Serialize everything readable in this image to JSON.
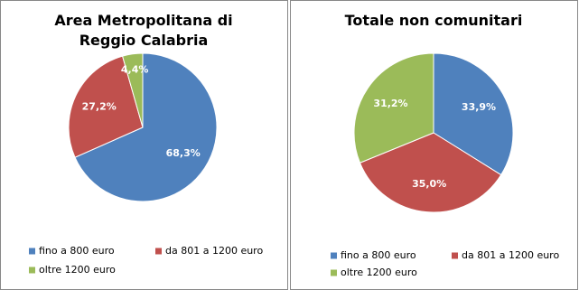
{
  "chart_data": [
    {
      "type": "pie",
      "title": "Area Metropolitana di Reggio Calabria",
      "categories": [
        "fino a 800 euro",
        "da 801 a 1200 euro",
        "oltre 1200 euro"
      ],
      "values": [
        68.3,
        27.2,
        4.4
      ],
      "value_labels": [
        "68,3%",
        "27,2%",
        "4,4%"
      ],
      "colors": [
        "#4f81bd",
        "#c0504d",
        "#9bbb59"
      ],
      "legend": "bottom"
    },
    {
      "type": "pie",
      "title": "Totale non comunitari",
      "categories": [
        "fino a 800 euro",
        "da 801 a 1200 euro",
        "oltre 1200 euro"
      ],
      "values": [
        33.9,
        35.0,
        31.2
      ],
      "value_labels": [
        "33,9%",
        "35,0%",
        "31,2%"
      ],
      "colors": [
        "#4f81bd",
        "#c0504d",
        "#9bbb59"
      ],
      "legend": "bottom"
    }
  ]
}
